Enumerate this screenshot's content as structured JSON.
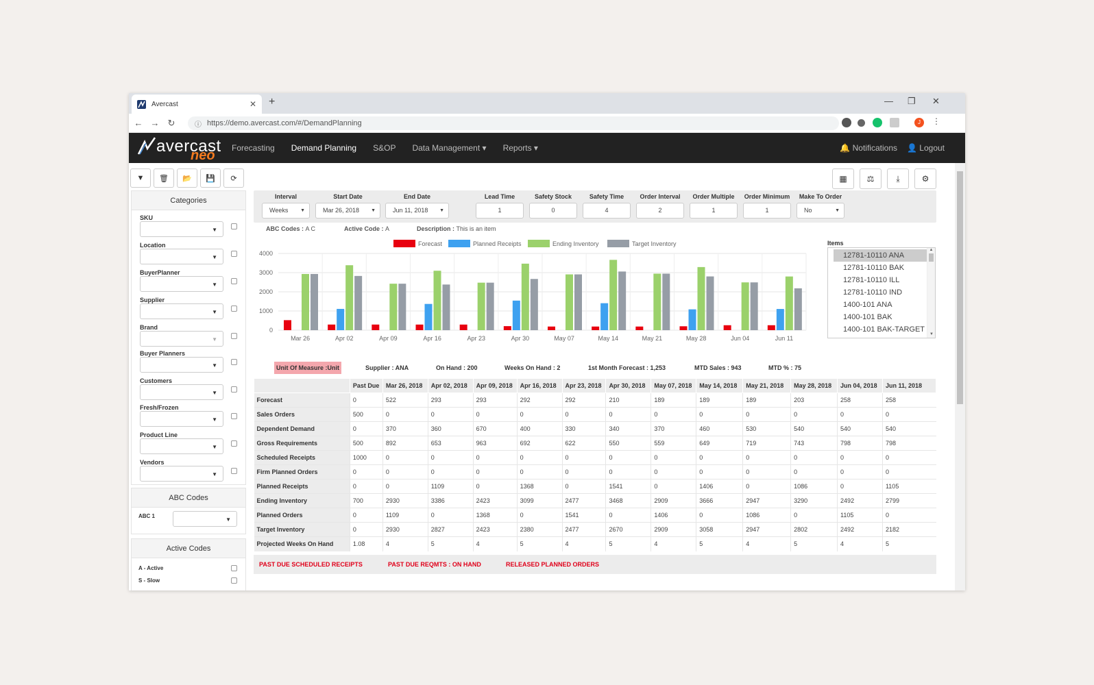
{
  "browser": {
    "tab_title": "Avercast",
    "url": "https://demo.avercast.com/#/DemandPlanning",
    "profile_initial": "J"
  },
  "nav": {
    "logo_word": "avercast",
    "logo_sub": "neo",
    "links": [
      "Forecasting",
      "Demand Planning",
      "S&OP",
      "Data Management ▾",
      "Reports ▾"
    ],
    "notifications": "Notifications",
    "logout": "Logout"
  },
  "sidebar": {
    "categories_title": "Categories",
    "filters": [
      "SKU",
      "Location",
      "BuyerPlanner",
      "Supplier",
      "Brand",
      "Buyer Planners",
      "Customers",
      "Fresh/Frozen",
      "Product Line",
      "Vendors"
    ],
    "abc_title": "ABC Codes",
    "abc_label": "ABC 1",
    "active_title": "Active Codes",
    "active_items": [
      "A - Active",
      "S - Slow"
    ]
  },
  "params": {
    "interval_label": "Interval",
    "interval_value": "Weeks",
    "start_label": "Start Date",
    "start_value": "Mar 26, 2018",
    "end_label": "End Date",
    "end_value": "Jun 11, 2018",
    "lead_label": "Lead Time",
    "lead_value": "1",
    "safety_stock_label": "Safety Stock",
    "safety_stock_value": "0",
    "safety_time_label": "Safety Time",
    "safety_time_value": "4",
    "order_interval_label": "Order Interval",
    "order_interval_value": "2",
    "order_multiple_label": "Order Multiple",
    "order_multiple_value": "1",
    "order_minimum_label": "Order Minimum",
    "order_minimum_value": "1",
    "make_to_order_label": "Make To Order",
    "make_to_order_value": "No"
  },
  "info": {
    "abc_codes_label": "ABC Codes :",
    "abc_codes_value": "A C",
    "active_code_label": "Active Code :",
    "active_code_value": "A",
    "description_label": "Description :",
    "description_value": "This is an item"
  },
  "items": {
    "label": "Items",
    "options": [
      "12781-10110 ANA",
      "12781-10110 BAK",
      "12781-10110 ILL",
      "12781-10110 IND",
      "1400-101 ANA",
      "1400-101 BAK",
      "1400-101 BAK-TARGET"
    ]
  },
  "summary": {
    "uom": "Unit Of Measure :Unit",
    "supplier": "Supplier :  ANA",
    "on_hand": "On Hand :  200",
    "weeks_on_hand": "Weeks On Hand :  2",
    "first_month": "1st Month Forecast :  1,253",
    "mtd_sales": "MTD Sales :  943",
    "mtd_pct": "MTD % :  75"
  },
  "colors": {
    "forecast": "#e8000f",
    "planned_receipts": "#3ea1f0",
    "ending_inventory": "#9bd16b",
    "target_inventory": "#969da6"
  },
  "chart_data": {
    "type": "bar",
    "categories": [
      "Mar 26",
      "Apr 02",
      "Apr 09",
      "Apr 16",
      "Apr 23",
      "Apr 30",
      "May 07",
      "May 14",
      "May 21",
      "May 28",
      "Jun 04",
      "Jun 11"
    ],
    "series": [
      {
        "name": "Forecast",
        "values": [
          522,
          293,
          293,
          292,
          292,
          210,
          189,
          189,
          189,
          203,
          258,
          258
        ]
      },
      {
        "name": "Planned Receipts",
        "values": [
          0,
          1109,
          0,
          1368,
          0,
          1541,
          0,
          1406,
          0,
          1086,
          0,
          1105
        ]
      },
      {
        "name": "Ending Inventory",
        "values": [
          2930,
          3386,
          2423,
          3099,
          2477,
          3468,
          2909,
          3666,
          2947,
          3290,
          2492,
          2799
        ]
      },
      {
        "name": "Target Inventory",
        "values": [
          2930,
          2827,
          2423,
          2380,
          2477,
          2670,
          2909,
          3058,
          2947,
          2802,
          2492,
          2182
        ]
      }
    ],
    "yticks": [
      "0",
      "1000",
      "2000",
      "3000",
      "4000"
    ],
    "ylim": [
      0,
      4000
    ],
    "legend": "top",
    "grid": true
  },
  "table": {
    "headers": [
      "",
      "Past Due",
      "Mar 26, 2018",
      "Apr 02, 2018",
      "Apr 09, 2018",
      "Apr 16, 2018",
      "Apr 23, 2018",
      "Apr 30, 2018",
      "May 07, 2018",
      "May 14, 2018",
      "May 21, 2018",
      "May 28, 2018",
      "Jun 04, 2018",
      "Jun 11, 2018"
    ],
    "rows": [
      [
        "Forecast",
        "0",
        "522",
        "293",
        "293",
        "292",
        "292",
        "210",
        "189",
        "189",
        "189",
        "203",
        "258",
        "258"
      ],
      [
        "Sales Orders",
        "500",
        "0",
        "0",
        "0",
        "0",
        "0",
        "0",
        "0",
        "0",
        "0",
        "0",
        "0",
        "0"
      ],
      [
        "Dependent Demand",
        "0",
        "370",
        "360",
        "670",
        "400",
        "330",
        "340",
        "370",
        "460",
        "530",
        "540",
        "540",
        "540"
      ],
      [
        "Gross Requirements",
        "500",
        "892",
        "653",
        "963",
        "692",
        "622",
        "550",
        "559",
        "649",
        "719",
        "743",
        "798",
        "798"
      ],
      [
        "Scheduled Receipts",
        "1000",
        "0",
        "0",
        "0",
        "0",
        "0",
        "0",
        "0",
        "0",
        "0",
        "0",
        "0",
        "0"
      ],
      [
        "Firm Planned Orders",
        "0",
        "0",
        "0",
        "0",
        "0",
        "0",
        "0",
        "0",
        "0",
        "0",
        "0",
        "0",
        "0"
      ],
      [
        "Planned Receipts",
        "0",
        "0",
        "1109",
        "0",
        "1368",
        "0",
        "1541",
        "0",
        "1406",
        "0",
        "1086",
        "0",
        "1105"
      ],
      [
        "Ending Inventory",
        "700",
        "2930",
        "3386",
        "2423",
        "3099",
        "2477",
        "3468",
        "2909",
        "3666",
        "2947",
        "3290",
        "2492",
        "2799"
      ],
      [
        "Planned Orders",
        "0",
        "1109",
        "0",
        "1368",
        "0",
        "1541",
        "0",
        "1406",
        "0",
        "1086",
        "0",
        "1105",
        "0"
      ],
      [
        "Target Inventory",
        "0",
        "2930",
        "2827",
        "2423",
        "2380",
        "2477",
        "2670",
        "2909",
        "3058",
        "2947",
        "2802",
        "2492",
        "2182"
      ],
      [
        "Projected Weeks On Hand",
        "1.08",
        "4",
        "5",
        "4",
        "5",
        "4",
        "5",
        "4",
        "5",
        "4",
        "5",
        "4",
        "5"
      ]
    ]
  },
  "footer": {
    "link1": "PAST DUE SCHEDULED RECEIPTS",
    "link2": "PAST DUE REQMTS : ON HAND",
    "link3": "RELEASED PLANNED ORDERS"
  }
}
